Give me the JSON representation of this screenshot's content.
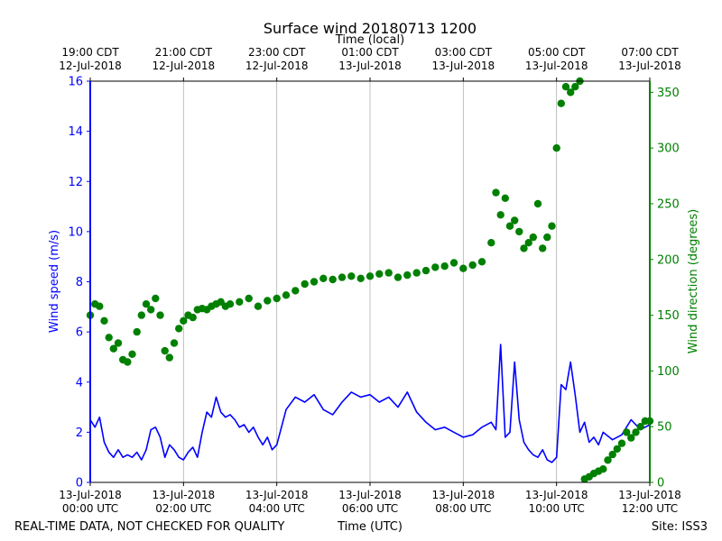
{
  "chart_data": {
    "type": "line+scatter",
    "title": "Surface wind 20180713 1200",
    "top_axis_label": "Time (local)",
    "xlabel": "Time (UTC)",
    "ylabel_left": "Wind speed (m/s)",
    "ylabel_right": "Wind direction (degrees)",
    "footer_left": "REAL-TIME DATA, NOT CHECKED FOR QUALITY",
    "footer_right": "Site: ISS3",
    "xlim_hours": [
      0,
      12
    ],
    "ylim_left": [
      0,
      16
    ],
    "ylim_right": [
      0,
      360
    ],
    "left_ticks": [
      0,
      2,
      4,
      6,
      8,
      10,
      12,
      14,
      16
    ],
    "right_ticks": [
      0,
      50,
      100,
      150,
      200,
      250,
      300,
      350
    ],
    "bottom_ticks": [
      {
        "hour": 0,
        "line1": "13-Jul-2018",
        "line2": "00:00 UTC"
      },
      {
        "hour": 2,
        "line1": "13-Jul-2018",
        "line2": "02:00 UTC"
      },
      {
        "hour": 4,
        "line1": "13-Jul-2018",
        "line2": "04:00 UTC"
      },
      {
        "hour": 6,
        "line1": "13-Jul-2018",
        "line2": "06:00 UTC"
      },
      {
        "hour": 8,
        "line1": "13-Jul-2018",
        "line2": "08:00 UTC"
      },
      {
        "hour": 10,
        "line1": "13-Jul-2018",
        "line2": "10:00 UTC"
      },
      {
        "hour": 12,
        "line1": "13-Jul-2018",
        "line2": "12:00 UTC"
      }
    ],
    "top_ticks": [
      {
        "hour": 0,
        "line1": "19:00 CDT",
        "line2": "12-Jul-2018"
      },
      {
        "hour": 2,
        "line1": "21:00 CDT",
        "line2": "12-Jul-2018"
      },
      {
        "hour": 4,
        "line1": "23:00 CDT",
        "line2": "12-Jul-2018"
      },
      {
        "hour": 6,
        "line1": "01:00 CDT",
        "line2": "13-Jul-2018"
      },
      {
        "hour": 8,
        "line1": "03:00 CDT",
        "line2": "13-Jul-2018"
      },
      {
        "hour": 10,
        "line1": "05:00 CDT",
        "line2": "13-Jul-2018"
      },
      {
        "hour": 12,
        "line1": "07:00 CDT",
        "line2": "13-Jul-2018"
      }
    ],
    "vertical_gridlines": true,
    "series": [
      {
        "name": "Wind speed",
        "axis": "left",
        "kind": "line",
        "color": "#0000ff",
        "x": [
          0.0,
          0.1,
          0.2,
          0.3,
          0.4,
          0.5,
          0.6,
          0.7,
          0.8,
          0.9,
          1.0,
          1.1,
          1.2,
          1.3,
          1.4,
          1.5,
          1.6,
          1.7,
          1.8,
          1.9,
          2.0,
          2.1,
          2.2,
          2.3,
          2.4,
          2.5,
          2.6,
          2.7,
          2.8,
          2.9,
          3.0,
          3.1,
          3.2,
          3.3,
          3.4,
          3.5,
          3.6,
          3.7,
          3.8,
          3.9,
          4.0,
          4.2,
          4.4,
          4.6,
          4.8,
          5.0,
          5.2,
          5.4,
          5.6,
          5.8,
          6.0,
          6.2,
          6.4,
          6.6,
          6.8,
          7.0,
          7.2,
          7.4,
          7.6,
          7.8,
          8.0,
          8.2,
          8.4,
          8.6,
          8.7,
          8.8,
          8.9,
          9.0,
          9.1,
          9.2,
          9.3,
          9.4,
          9.5,
          9.6,
          9.7,
          9.8,
          9.9,
          10.0,
          10.1,
          10.2,
          10.3,
          10.4,
          10.5,
          10.6,
          10.7,
          10.8,
          10.9,
          11.0,
          11.2,
          11.4,
          11.6,
          11.8,
          12.0
        ],
        "y": [
          2.5,
          2.2,
          2.6,
          1.6,
          1.2,
          1.0,
          1.3,
          1.0,
          1.1,
          1.0,
          1.2,
          0.9,
          1.3,
          2.1,
          2.2,
          1.8,
          1.0,
          1.5,
          1.3,
          1.0,
          0.9,
          1.2,
          1.4,
          1.0,
          2.0,
          2.8,
          2.6,
          3.4,
          2.8,
          2.6,
          2.7,
          2.5,
          2.2,
          2.3,
          2.0,
          2.2,
          1.8,
          1.5,
          1.8,
          1.3,
          1.5,
          2.9,
          3.4,
          3.2,
          3.5,
          2.9,
          2.7,
          3.2,
          3.6,
          3.4,
          3.5,
          3.2,
          3.4,
          3.0,
          3.6,
          2.8,
          2.4,
          2.1,
          2.2,
          2.0,
          1.8,
          1.9,
          2.2,
          2.4,
          2.1,
          5.5,
          1.8,
          2.0,
          4.8,
          2.5,
          1.6,
          1.3,
          1.1,
          1.0,
          1.3,
          0.9,
          0.8,
          1.0,
          3.9,
          3.7,
          4.8,
          3.5,
          2.0,
          2.4,
          1.6,
          1.8,
          1.5,
          2.0,
          1.7,
          1.9,
          2.5,
          2.1,
          2.3
        ]
      },
      {
        "name": "Wind direction",
        "axis": "right",
        "kind": "scatter",
        "color": "#008000",
        "x": [
          0.0,
          0.1,
          0.2,
          0.3,
          0.4,
          0.5,
          0.6,
          0.7,
          0.8,
          0.9,
          1.0,
          1.1,
          1.2,
          1.3,
          1.4,
          1.5,
          1.6,
          1.7,
          1.8,
          1.9,
          2.0,
          2.1,
          2.2,
          2.3,
          2.4,
          2.5,
          2.6,
          2.7,
          2.8,
          2.9,
          3.0,
          3.2,
          3.4,
          3.6,
          3.8,
          4.0,
          4.2,
          4.4,
          4.6,
          4.8,
          5.0,
          5.2,
          5.4,
          5.6,
          5.8,
          6.0,
          6.2,
          6.4,
          6.6,
          6.8,
          7.0,
          7.2,
          7.4,
          7.6,
          7.8,
          8.0,
          8.2,
          8.4,
          8.6,
          8.7,
          8.8,
          8.9,
          9.0,
          9.1,
          9.2,
          9.3,
          9.4,
          9.5,
          9.6,
          9.7,
          9.8,
          9.9,
          10.0,
          10.1,
          10.2,
          10.3,
          10.4,
          10.5,
          10.6,
          10.7,
          10.8,
          10.9,
          11.0,
          11.1,
          11.2,
          11.3,
          11.4,
          11.5,
          11.6,
          11.7,
          11.8,
          11.9,
          12.0
        ],
        "y": [
          150,
          160,
          158,
          145,
          130,
          120,
          125,
          110,
          108,
          115,
          135,
          150,
          160,
          155,
          165,
          150,
          118,
          112,
          125,
          138,
          145,
          150,
          148,
          155,
          156,
          155,
          158,
          160,
          162,
          158,
          160,
          162,
          165,
          158,
          163,
          165,
          168,
          172,
          178,
          180,
          183,
          182,
          184,
          185,
          183,
          185,
          187,
          188,
          184,
          186,
          188,
          190,
          193,
          194,
          197,
          192,
          195,
          198,
          215,
          260,
          240,
          255,
          230,
          235,
          225,
          210,
          215,
          220,
          250,
          210,
          220,
          230,
          300,
          340,
          355,
          350,
          355,
          360,
          3,
          5,
          8,
          10,
          12,
          20,
          25,
          30,
          35,
          45,
          40,
          45,
          50,
          55,
          55
        ]
      }
    ]
  }
}
